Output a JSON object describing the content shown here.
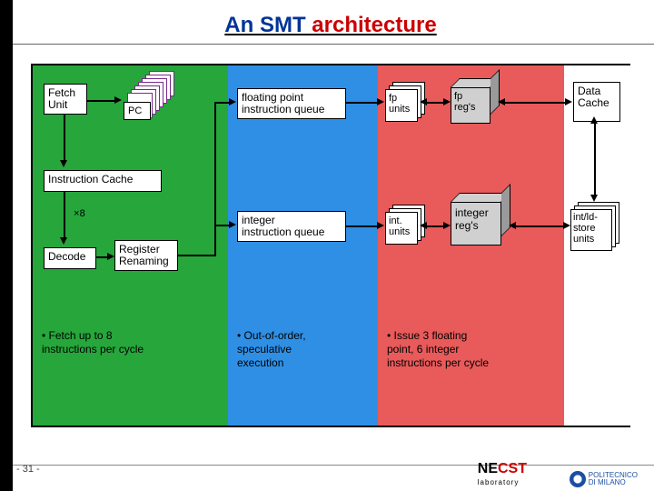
{
  "title_part1": "An  SMT ",
  "title_part2": "architecture",
  "colors": {
    "zone_green": "#26a63b",
    "zone_blue": "#2f8fe4",
    "zone_red": "#e95a5a",
    "gray_light": "#d0d0d0",
    "gray_dark": "#9a9a9a",
    "pc_stack_frame": "#7a2a8a"
  },
  "boxes": {
    "fetch": "Fetch\nUnit",
    "pc": "PC",
    "icache": "Instruction Cache",
    "mul8": "8",
    "decode": "Decode",
    "regren": "Register\nRenaming",
    "fpq": "floating point\ninstruction queue",
    "intq": "integer\ninstruction queue",
    "fpunits": "fp\nunits",
    "intunits": "int.\nunits",
    "fpregs": "fp\nreg's",
    "intregs": "integer\nreg's",
    "dcache": "Data\nCache",
    "ldst": "int/ld-\nstore\nunits"
  },
  "captions": {
    "green": "•  Fetch up to 8\ninstructions per cycle",
    "blue": "•  Out-of-order,\nspeculative\nexecution",
    "red": "•  Issue 3 floating\npoint, 6 integer\ninstructions per cycle"
  },
  "page_num": "- 31 -",
  "footer_logos": {
    "necst": "NE CST",
    "necst_sub": "laboratory",
    "polimi": "POLITECNICO\nDI MILANO"
  }
}
